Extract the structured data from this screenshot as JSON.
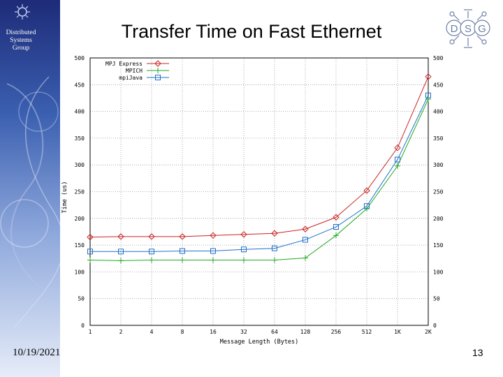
{
  "sidebar": {
    "group_lines": [
      "Distributed",
      "Systems",
      "Group"
    ]
  },
  "slide": {
    "title": "Transfer Time on Fast Ethernet",
    "date": "10/19/2021",
    "page_number": "13"
  },
  "logo": {
    "letters": [
      "D",
      "S",
      "G"
    ],
    "color": "#6d7fa6"
  },
  "chart_data": {
    "type": "line",
    "title": "",
    "xlabel": "Message Length (Bytes)",
    "ylabel": "Time (us)",
    "categories": [
      "1",
      "2",
      "4",
      "8",
      "16",
      "32",
      "64",
      "128",
      "256",
      "512",
      "1K",
      "2K"
    ],
    "ylim": [
      0,
      500
    ],
    "yticks": [
      "0",
      "50",
      "100",
      "150",
      "200",
      "250",
      "300",
      "350",
      "400",
      "450",
      "500"
    ],
    "grid": true,
    "legend_position": "top-left",
    "series": [
      {
        "name": "MPJ Express",
        "color": "#cc2222",
        "marker": "diamond",
        "values": [
          165,
          166,
          166,
          166,
          168,
          170,
          172,
          180,
          202,
          252,
          332,
          465
        ]
      },
      {
        "name": "MPICH",
        "color": "#22aa22",
        "marker": "plus",
        "values": [
          122,
          121,
          122,
          122,
          122,
          122,
          122,
          126,
          168,
          218,
          298,
          423
        ]
      },
      {
        "name": "mpiJava",
        "color": "#1e6fcc",
        "marker": "square",
        "values": [
          138,
          138,
          138,
          139,
          139,
          142,
          144,
          160,
          184,
          223,
          310,
          430
        ]
      }
    ]
  }
}
